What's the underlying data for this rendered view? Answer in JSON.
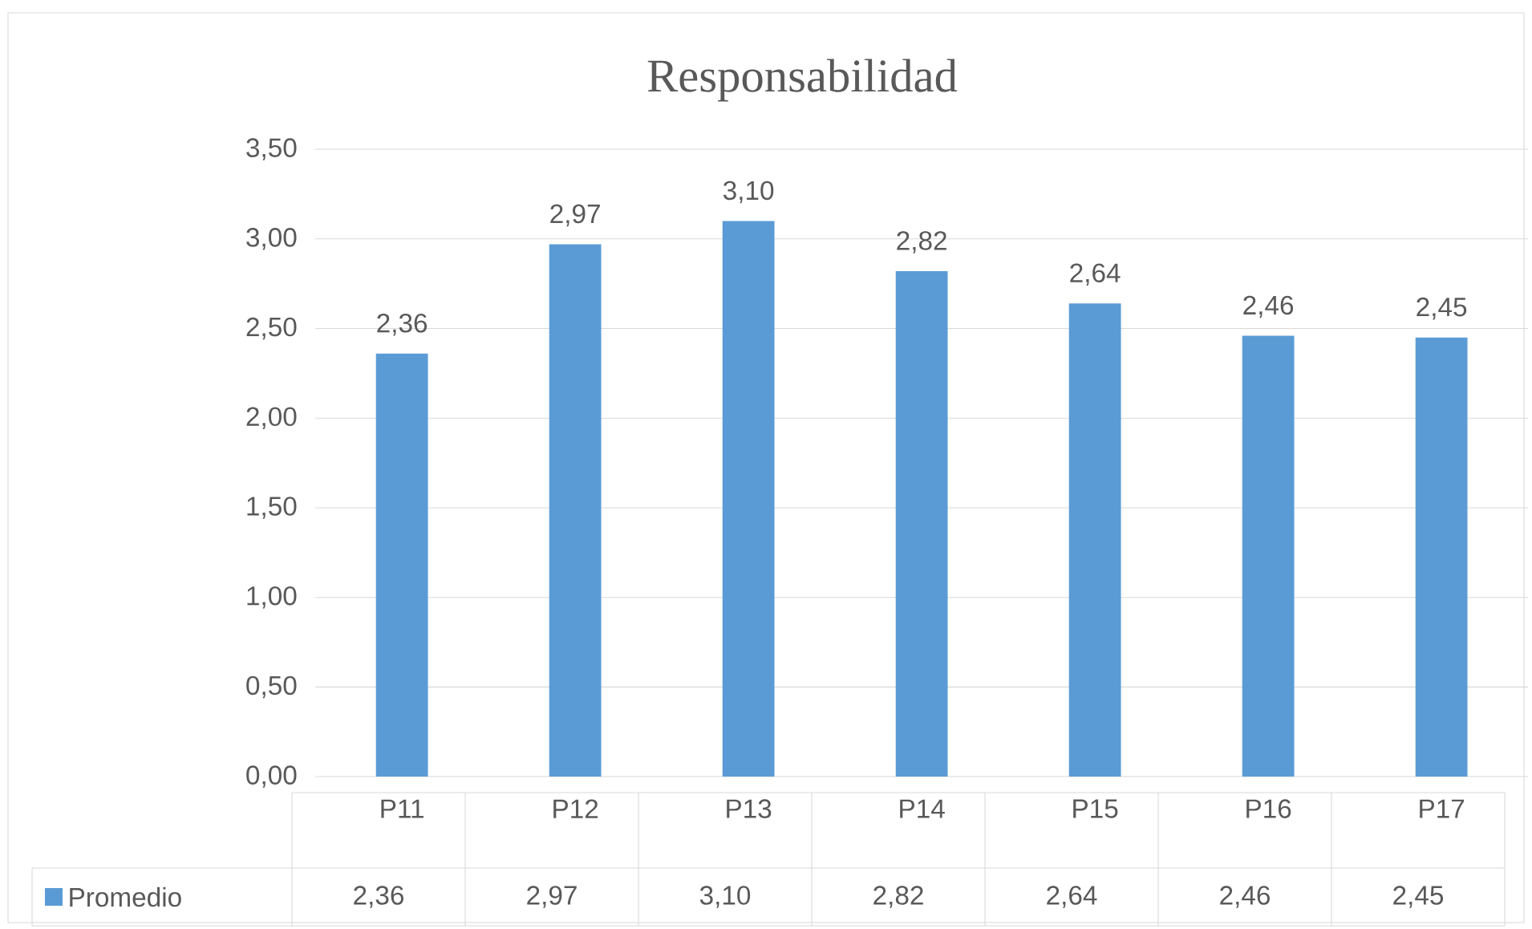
{
  "chart_data": {
    "type": "bar",
    "title": "Responsabilidad",
    "categories": [
      "P11",
      "P12",
      "P13",
      "P14",
      "P15",
      "P16",
      "P17"
    ],
    "series": [
      {
        "name": "Promedio",
        "color": "#5b9bd5",
        "values": [
          2.36,
          2.97,
          3.1,
          2.82,
          2.64,
          2.46,
          2.45
        ],
        "value_labels": [
          "2,36",
          "2,97",
          "3,10",
          "2,82",
          "2,64",
          "2,46",
          "2,45"
        ]
      }
    ],
    "ylim": [
      0,
      3.5
    ],
    "yticks": [
      {
        "value": 0,
        "label": "0,00"
      },
      {
        "value": 0.5,
        "label": "0,50"
      },
      {
        "value": 1,
        "label": "1,00"
      },
      {
        "value": 1.5,
        "label": "1,50"
      },
      {
        "value": 2,
        "label": "2,00"
      },
      {
        "value": 2.5,
        "label": "2,50"
      },
      {
        "value": 3,
        "label": "3,00"
      },
      {
        "value": 3.5,
        "label": "3,50"
      }
    ],
    "grid": "y",
    "legend": "bottom"
  }
}
